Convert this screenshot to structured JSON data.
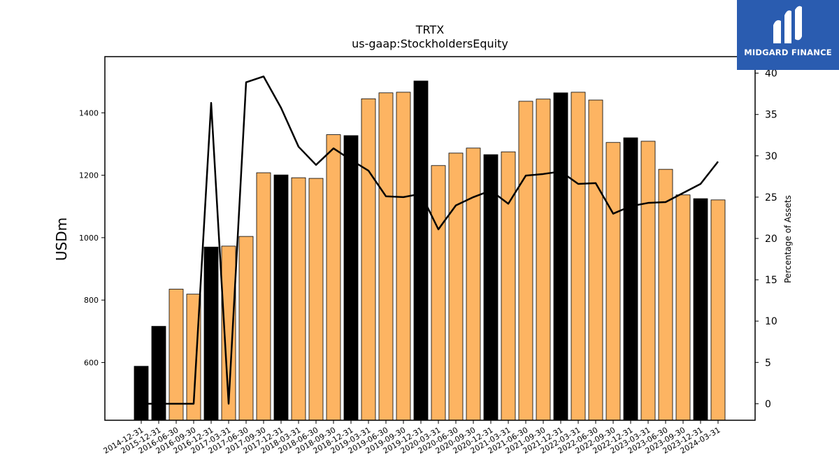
{
  "chart_data": {
    "type": "bar",
    "title": "TRTX",
    "subtitle": "us-gaap:StockholdersEquity",
    "ylabel": "USDm",
    "y2label": "Percentage of Assets",
    "ylim": [
      415,
      1580
    ],
    "y2lim": [
      -2,
      42
    ],
    "yticks": [
      600,
      800,
      1000,
      1200,
      1400
    ],
    "y2ticks": [
      0,
      5,
      10,
      15,
      20,
      25,
      30,
      35,
      40
    ],
    "categories": [
      "2014-12-31",
      "2015-12-31",
      "2016-06-30",
      "2016-09-30",
      "2016-12-31",
      "2017-03-31",
      "2017-06-30",
      "2017-09-30",
      "2017-12-31",
      "2018-03-31",
      "2018-06-30",
      "2018-09-30",
      "2018-12-31",
      "2019-03-31",
      "2019-06-30",
      "2019-09-30",
      "2019-12-31",
      "2020-03-31",
      "2020-06-30",
      "2020-09-30",
      "2020-12-31",
      "2021-03-31",
      "2021-06-30",
      "2021-09-30",
      "2021-12-31",
      "2022-03-31",
      "2022-06-30",
      "2022-09-30",
      "2022-12-31",
      "2023-03-31",
      "2023-06-30",
      "2023-09-30",
      "2023-12-31",
      "2024-03-31"
    ],
    "series": [
      {
        "type": "bar",
        "values": [
          588,
          716,
          835,
          819,
          970,
          973,
          1004,
          1208,
          1201,
          1192,
          1190,
          1330,
          1327,
          1445,
          1464,
          1466,
          1502,
          1231,
          1271,
          1287,
          1266,
          1275,
          1437,
          1444,
          1464,
          1466,
          1441,
          1305,
          1320,
          1309,
          1219,
          1137,
          1125,
          1121
        ],
        "annual": [
          true,
          true,
          false,
          false,
          true,
          false,
          false,
          false,
          true,
          false,
          false,
          false,
          true,
          false,
          false,
          false,
          true,
          false,
          false,
          false,
          true,
          false,
          false,
          false,
          true,
          false,
          false,
          false,
          true,
          false,
          false,
          false,
          true,
          false
        ]
      },
      {
        "type": "line",
        "axis": "right",
        "values": [
          0,
          0,
          0,
          0,
          36.4,
          0,
          38.9,
          39.6,
          35.8,
          31.1,
          28.9,
          30.9,
          29.5,
          28.2,
          25.1,
          25.0,
          25.4,
          21.1,
          24.0,
          25.0,
          25.8,
          24.2,
          27.6,
          27.8,
          28.1,
          26.6,
          26.7,
          23.0,
          23.9,
          24.3,
          24.4,
          25.5,
          26.6,
          29.3
        ]
      }
    ],
    "colors": {
      "annual_bar": "#000000",
      "quarter_bar": "#fdb462",
      "line": "#000000"
    }
  },
  "logo": {
    "text": "MIDGARD FINANCE",
    "background": "#2a5cb0"
  }
}
